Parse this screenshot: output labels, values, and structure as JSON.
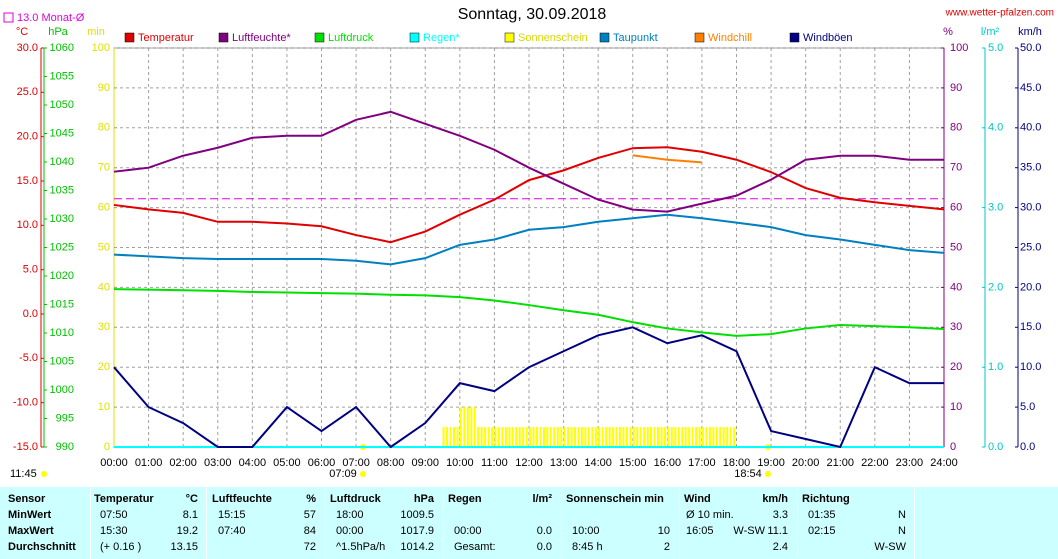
{
  "chart_data": {
    "type": "line",
    "title": "Sonntag, 30.09.2018",
    "source": "www.wetter-pfalzen.com",
    "reference": {
      "label": "13.0 Monat-Ø",
      "value": 13.0,
      "axis": "temp",
      "color": "#e000e0"
    },
    "annotations": [
      "11:45",
      "07:09",
      "18:54"
    ],
    "grid": true,
    "xlim": [
      0,
      24
    ],
    "xticks": [
      {
        "value": 0,
        "label": "00:00"
      },
      {
        "value": 1,
        "label": "01:00"
      },
      {
        "value": 2,
        "label": "02:00"
      },
      {
        "value": 3,
        "label": "03:00"
      },
      {
        "value": 4,
        "label": "04:00"
      },
      {
        "value": 5,
        "label": "05:00"
      },
      {
        "value": 6,
        "label": "06:00"
      },
      {
        "value": 7,
        "label": "07:00"
      },
      {
        "value": 8,
        "label": "08:00"
      },
      {
        "value": 9,
        "label": "09:00"
      },
      {
        "value": 10,
        "label": "10:00"
      },
      {
        "value": 11,
        "label": "11:00"
      },
      {
        "value": 12,
        "label": "12:00"
      },
      {
        "value": 13,
        "label": "13:00"
      },
      {
        "value": 14,
        "label": "14:00"
      },
      {
        "value": 15,
        "label": "15:00"
      },
      {
        "value": 16,
        "label": "16:00"
      },
      {
        "value": 17,
        "label": "17:00"
      },
      {
        "value": 18,
        "label": "18:00"
      },
      {
        "value": 19,
        "label": "19:00"
      },
      {
        "value": 20,
        "label": "20:00"
      },
      {
        "value": 21,
        "label": "21:00"
      },
      {
        "value": 22,
        "label": "22:00"
      },
      {
        "value": 23,
        "label": "23:00"
      },
      {
        "value": 24,
        "label": "24:00"
      }
    ],
    "axes": {
      "temp": {
        "label": "°C",
        "color": "#e00000",
        "lim": [
          -15,
          30
        ],
        "ticks": [
          {
            "value": -15,
            "label": "-15.0"
          },
          {
            "value": -10,
            "label": "-10.0"
          },
          {
            "value": -5,
            "label": "-5.0"
          },
          {
            "value": 0,
            "label": "0.0"
          },
          {
            "value": 5,
            "label": "5.0"
          },
          {
            "value": 10,
            "label": "10.0"
          },
          {
            "value": 15,
            "label": "15.0"
          },
          {
            "value": 20,
            "label": "20.0"
          },
          {
            "value": 25,
            "label": "25.0"
          },
          {
            "value": 30,
            "label": "30.0"
          }
        ]
      },
      "press": {
        "label": "hPa",
        "color": "#00c000",
        "lim": [
          990,
          1060
        ],
        "ticks": [
          990,
          995,
          1000,
          1005,
          1010,
          1015,
          1020,
          1025,
          1030,
          1035,
          1040,
          1045,
          1050,
          1055,
          1060
        ]
      },
      "sun": {
        "label": "min",
        "color": "#e0e000",
        "lim": [
          0,
          100
        ],
        "ticks": [
          0,
          10,
          20,
          30,
          40,
          50,
          60,
          70,
          80,
          90,
          100
        ]
      },
      "hum": {
        "label": "%",
        "color": "#800080",
        "lim": [
          0,
          100
        ],
        "ticks": [
          0,
          10,
          20,
          30,
          40,
          50,
          60,
          70,
          80,
          90,
          100
        ]
      },
      "rain": {
        "label": "l/m²",
        "color": "#00c8c8",
        "lim": [
          0,
          5
        ],
        "ticks": [
          {
            "value": 0,
            "label": "0.0"
          },
          {
            "value": 1,
            "label": "1.0"
          },
          {
            "value": 2,
            "label": "2.0"
          },
          {
            "value": 3,
            "label": "3.0"
          },
          {
            "value": 4,
            "label": "4.0"
          },
          {
            "value": 5,
            "label": "5.0"
          }
        ]
      },
      "wind": {
        "label": "km/h",
        "color": "#000080",
        "lim": [
          0,
          50
        ],
        "ticks": [
          {
            "value": 0,
            "label": "0.0"
          },
          {
            "value": 5,
            "label": "5.0"
          },
          {
            "value": 10,
            "label": "10.0"
          },
          {
            "value": 15,
            "label": "15.0"
          },
          {
            "value": 20,
            "label": "20.0"
          },
          {
            "value": 25,
            "label": "25.0"
          },
          {
            "value": 30,
            "label": "30.0"
          },
          {
            "value": 35,
            "label": "35.0"
          },
          {
            "value": 40,
            "label": "40.0"
          },
          {
            "value": 45,
            "label": "45.0"
          },
          {
            "value": 50,
            "label": "50.0"
          }
        ]
      }
    },
    "x": [
      0,
      1,
      2,
      3,
      4,
      5,
      6,
      7,
      8,
      9,
      10,
      11,
      12,
      13,
      14,
      15,
      16,
      17,
      18,
      19,
      20,
      21,
      22,
      23,
      24
    ],
    "series": [
      {
        "name": "Temperatur",
        "type": "line",
        "axis": "temp",
        "color": "#e00000",
        "values": [
          12.3,
          11.8,
          11.4,
          10.4,
          10.4,
          10.2,
          9.9,
          8.9,
          8.1,
          9.3,
          11.2,
          12.9,
          15.1,
          16.2,
          17.6,
          18.7,
          18.8,
          18.3,
          17.4,
          16.0,
          14.2,
          13.1,
          12.6,
          12.2,
          11.8
        ]
      },
      {
        "name": "Luftfeuchte*",
        "type": "line",
        "axis": "hum",
        "color": "#800080",
        "values": [
          69,
          70,
          73,
          75,
          77.5,
          78,
          78,
          82,
          84,
          81,
          78,
          74.5,
          70,
          66,
          62,
          59.5,
          59,
          61,
          63,
          67,
          72,
          73,
          73,
          72,
          72
        ]
      },
      {
        "name": "Luftdruck",
        "type": "line",
        "axis": "press",
        "color": "#00e000",
        "values": [
          1017.7,
          1017.6,
          1017.5,
          1017.4,
          1017.2,
          1017.1,
          1017.0,
          1016.9,
          1016.7,
          1016.6,
          1016.3,
          1015.7,
          1014.9,
          1014.0,
          1013.2,
          1011.9,
          1010.8,
          1010.1,
          1009.5,
          1009.8,
          1010.8,
          1011.4,
          1011.2,
          1011.0,
          1010.7
        ]
      },
      {
        "name": "Regen*",
        "type": "line",
        "axis": "rain",
        "color": "#00ffff",
        "values": [
          0,
          0,
          0,
          0,
          0,
          0,
          0,
          0,
          0,
          0,
          0,
          0,
          0,
          0,
          0,
          0,
          0,
          0,
          0,
          0,
          0,
          0,
          0,
          0,
          0
        ]
      },
      {
        "name": "Sonnenschein",
        "type": "bar",
        "axis": "sun",
        "color": "#ffff00",
        "x": [
          9.5,
          10,
          10.5,
          11,
          11.5,
          12,
          12.5,
          13,
          13.5,
          14,
          14.5,
          15,
          15.5,
          16,
          16.5,
          17,
          17.5
        ],
        "values": [
          5,
          10,
          5,
          5,
          5,
          5,
          5,
          5,
          5,
          5,
          5,
          5,
          5,
          5,
          5,
          5,
          5
        ]
      },
      {
        "name": "Taupunkt",
        "type": "line",
        "axis": "temp",
        "color": "#0080c0",
        "values": [
          6.7,
          6.5,
          6.3,
          6.2,
          6.2,
          6.2,
          6.2,
          6.0,
          5.6,
          6.3,
          7.8,
          8.4,
          9.5,
          9.8,
          10.4,
          10.8,
          11.2,
          10.8,
          10.3,
          9.8,
          8.9,
          8.4,
          7.8,
          7.2,
          6.9
        ]
      },
      {
        "name": "Windchill",
        "type": "line",
        "axis": "temp",
        "color": "#ff8000",
        "values": [
          null,
          null,
          null,
          null,
          null,
          null,
          null,
          null,
          null,
          null,
          null,
          null,
          null,
          null,
          null,
          17.9,
          17.4,
          17.1,
          null,
          null,
          null,
          null,
          null,
          null,
          null
        ]
      },
      {
        "name": "Windböen",
        "type": "line",
        "axis": "wind",
        "color": "#000080",
        "values": [
          10,
          5,
          3,
          0,
          0,
          5,
          2,
          5,
          0,
          3,
          8,
          7,
          10,
          12,
          14,
          15,
          13,
          14,
          12,
          2,
          1,
          0,
          10,
          8,
          8
        ]
      }
    ]
  },
  "table": {
    "header": [
      {
        "name": "Sensor"
      },
      {
        "name": "Temperatur",
        "unit": "°C"
      },
      {
        "name": "Luftfeuchte",
        "unit": "%"
      },
      {
        "name": "Luftdruck",
        "unit": "hPa"
      },
      {
        "name": "Regen",
        "unit": "l/m²"
      },
      {
        "name": "Sonnenschein min"
      },
      {
        "name": "Wind",
        "unit": "km/h"
      },
      {
        "name": "Richtung"
      }
    ],
    "rows": [
      [
        "MinWert",
        "07:50",
        "8.1",
        "15:15",
        "57",
        "18:00",
        "1009.5",
        null,
        null,
        null,
        null,
        "Ø 10 min.",
        null,
        "3.3",
        "01:35",
        "N"
      ],
      [
        "MaxWert",
        "15:30",
        "19.2",
        "07:40",
        "84",
        "00:00",
        "1017.9",
        "00:00",
        "0.0",
        "10:00",
        "10",
        "16:05",
        "W-SW",
        "11.1",
        "02:15",
        "N"
      ],
      [
        "Durchschnitt",
        "(+ 0.16 )",
        "13.15",
        null,
        "72",
        "^1.5hPa/h",
        "1014.2",
        "Gesamt:",
        "0.0",
        "8:45 h",
        "2",
        null,
        null,
        "2.4",
        null,
        "W-SW"
      ]
    ]
  }
}
